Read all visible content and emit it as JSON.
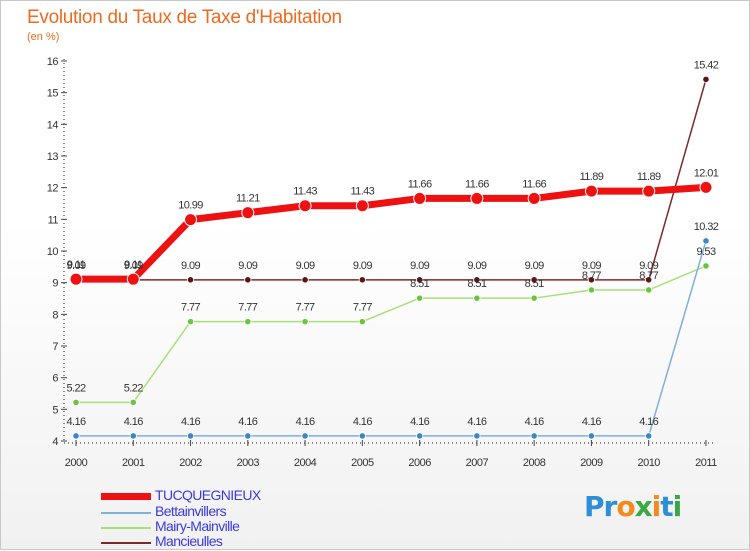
{
  "title": "Evolution du Taux de Taxe d'Habitation",
  "subtitle": "(en %)",
  "logo": {
    "text": "Proxiti",
    "letters": [
      {
        "ch": "P",
        "color": "#2f8fd6"
      },
      {
        "ch": "r",
        "color": "#2f8fd6"
      },
      {
        "ch": "o",
        "color": "#f28a1d"
      },
      {
        "ch": "x",
        "color": "#39a845"
      },
      {
        "ch": "i",
        "color": "#f28a1d"
      },
      {
        "ch": "t",
        "color": "#2f8fd6"
      },
      {
        "ch": "i",
        "color": "#39a845"
      }
    ]
  },
  "chart_data": {
    "type": "line",
    "title": "Evolution du Taux de Taxe d'Habitation",
    "ylabel": "(en %)",
    "xlabel": "",
    "ylim": [
      4,
      16
    ],
    "yticks": [
      4,
      5,
      6,
      7,
      8,
      9,
      10,
      11,
      12,
      13,
      14,
      15,
      16
    ],
    "categories": [
      "2000",
      "2001",
      "2002",
      "2003",
      "2004",
      "2005",
      "2006",
      "2007",
      "2008",
      "2009",
      "2010",
      "2011"
    ],
    "legend_position": "bottom-left",
    "series": [
      {
        "name": "TUCQUEGNIEUX",
        "color": "#ee1111",
        "point_color": "#ee1111",
        "emphasis": true,
        "values": [
          9.11,
          9.11,
          10.99,
          11.21,
          11.43,
          11.43,
          11.66,
          11.66,
          11.66,
          11.89,
          11.89,
          12.01
        ],
        "labels": [
          "9.11",
          "9.11",
          "10.99",
          "11.21",
          "11.43",
          "11.43",
          "11.66",
          "11.66",
          "11.66",
          "11.89",
          "11.89",
          "12.01"
        ]
      },
      {
        "name": "Bettainvillers",
        "color": "#7fb0d6",
        "point_color": "#3b86c6",
        "values": [
          4.16,
          4.16,
          4.16,
          4.16,
          4.16,
          4.16,
          4.16,
          4.16,
          4.16,
          4.16,
          4.16,
          10.32
        ],
        "labels": [
          "4.16",
          "4.16",
          "4.16",
          "4.16",
          "4.16",
          "4.16",
          "4.16",
          "4.16",
          "4.16",
          "4.16",
          "4.16",
          "10.32"
        ]
      },
      {
        "name": "Mairy-Mainville",
        "color": "#a8e07a",
        "point_color": "#6cc43e",
        "values": [
          5.22,
          5.22,
          7.77,
          7.77,
          7.77,
          7.77,
          8.51,
          8.51,
          8.51,
          8.77,
          8.77,
          9.53
        ],
        "labels": [
          "5.22",
          "5.22",
          "7.77",
          "7.77",
          "7.77",
          "7.77",
          "8.51",
          "8.51",
          "8.51",
          "8.77",
          "8.77",
          "9.53"
        ]
      },
      {
        "name": "Mancieulles",
        "color": "#7a2a2a",
        "point_color": "#5a1515",
        "values": [
          9.09,
          9.09,
          9.09,
          9.09,
          9.09,
          9.09,
          9.09,
          9.09,
          9.09,
          9.09,
          9.09,
          15.42
        ],
        "labels": [
          "9.09",
          "9.09",
          "9.09",
          "9.09",
          "9.09",
          "9.09",
          "9.09",
          "9.09",
          "9.09",
          "9.09",
          "9.09",
          "15.42"
        ]
      }
    ]
  }
}
